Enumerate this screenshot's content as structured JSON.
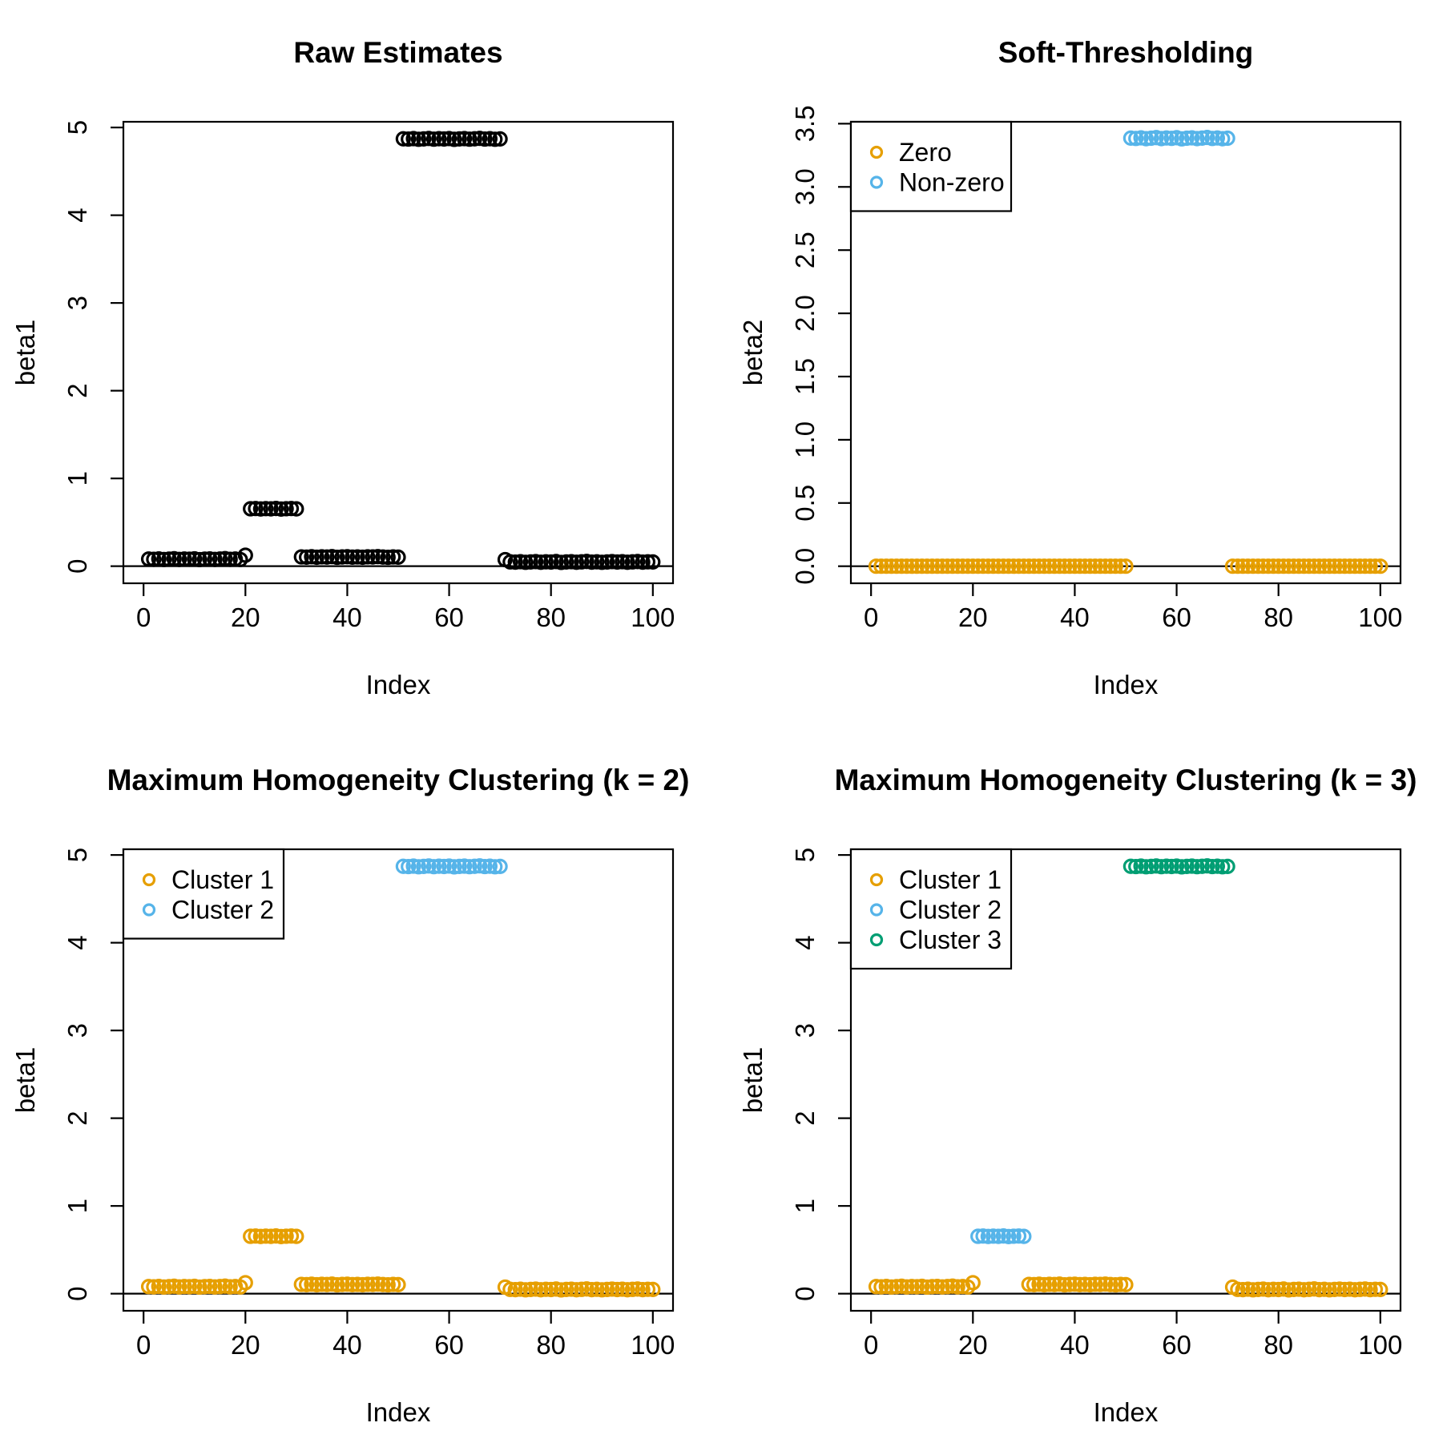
{
  "figure": {
    "background": "#ffffff",
    "point_marker": "open-circle",
    "colors": {
      "black": "#000000",
      "orange": "#E69F00",
      "sky_blue": "#56B4E9",
      "green": "#009E73"
    }
  },
  "chart_data": {
    "type": "scatter",
    "grid": "2x2",
    "x_is_index": true,
    "x": [
      1,
      2,
      3,
      4,
      5,
      6,
      7,
      8,
      9,
      10,
      11,
      12,
      13,
      14,
      15,
      16,
      17,
      18,
      19,
      20,
      21,
      22,
      23,
      24,
      25,
      26,
      27,
      28,
      29,
      30,
      31,
      32,
      33,
      34,
      35,
      36,
      37,
      38,
      39,
      40,
      41,
      42,
      43,
      44,
      45,
      46,
      47,
      48,
      49,
      50,
      51,
      52,
      53,
      54,
      55,
      56,
      57,
      58,
      59,
      60,
      61,
      62,
      63,
      64,
      65,
      66,
      67,
      68,
      69,
      70,
      71,
      72,
      73,
      74,
      75,
      76,
      77,
      78,
      79,
      80,
      81,
      82,
      83,
      84,
      85,
      86,
      87,
      88,
      89,
      90,
      91,
      92,
      93,
      94,
      95,
      96,
      97,
      98,
      99,
      100
    ],
    "beta1": [
      0.081,
      0.078,
      0.083,
      0.076,
      0.08,
      0.085,
      0.077,
      0.082,
      0.079,
      0.084,
      0.075,
      0.08,
      0.083,
      0.077,
      0.081,
      0.086,
      0.078,
      0.082,
      0.076,
      0.125,
      0.654,
      0.657,
      0.652,
      0.656,
      0.653,
      0.658,
      0.651,
      0.655,
      0.657,
      0.653,
      0.106,
      0.103,
      0.108,
      0.102,
      0.107,
      0.104,
      0.109,
      0.101,
      0.105,
      0.108,
      0.103,
      0.106,
      0.102,
      0.107,
      0.105,
      0.109,
      0.104,
      0.101,
      0.106,
      0.103,
      4.871,
      4.868,
      4.873,
      4.866,
      4.87,
      4.875,
      4.867,
      4.872,
      4.869,
      4.874,
      4.865,
      4.87,
      4.873,
      4.867,
      4.871,
      4.876,
      4.868,
      4.872,
      4.866,
      4.87,
      0.075,
      0.049,
      0.046,
      0.051,
      0.044,
      0.048,
      0.052,
      0.045,
      0.05,
      0.047,
      0.053,
      0.043,
      0.048,
      0.051,
      0.045,
      0.049,
      0.054,
      0.046,
      0.05,
      0.044,
      0.048,
      0.052,
      0.047,
      0.051,
      0.045,
      0.049,
      0.053,
      0.046,
      0.05,
      0.048
    ],
    "beta2": [
      0,
      0,
      0,
      0,
      0,
      0,
      0,
      0,
      0,
      0,
      0,
      0,
      0,
      0,
      0,
      0,
      0,
      0,
      0,
      0,
      0,
      0,
      0,
      0,
      0,
      0,
      0,
      0,
      0,
      0,
      0,
      0,
      0,
      0,
      0,
      0,
      0,
      0,
      0,
      0,
      0,
      0,
      0,
      0,
      0,
      0,
      0,
      0,
      0,
      0,
      3.386,
      3.383,
      3.388,
      3.381,
      3.385,
      3.39,
      3.382,
      3.387,
      3.384,
      3.389,
      3.38,
      3.385,
      3.388,
      3.382,
      3.386,
      3.391,
      3.383,
      3.387,
      3.381,
      3.385,
      0,
      0,
      0,
      0,
      0,
      0,
      0,
      0,
      0,
      0,
      0,
      0,
      0,
      0,
      0,
      0,
      0,
      0,
      0,
      0,
      0,
      0,
      0,
      0,
      0,
      0,
      0,
      0,
      0,
      0
    ],
    "panels": [
      {
        "title": "Raw Estimates",
        "xlabel": "Index",
        "ylabel": "beta1",
        "y_key": "beta1",
        "xlim": [
          -3.96,
          103.96
        ],
        "ylim": [
          -0.195,
          5.065
        ],
        "xticks": [
          0,
          20,
          40,
          60,
          80,
          100
        ],
        "xtick_labels": [
          "0",
          "20",
          "40",
          "60",
          "80",
          "100"
        ],
        "yticks": [
          0,
          1,
          2,
          3,
          4,
          5
        ],
        "ytick_labels": [
          "0",
          "1",
          "2",
          "3",
          "4",
          "5"
        ],
        "hline": 0,
        "legend": null,
        "groups": [
          {
            "label": null,
            "color": "#000000",
            "ranges": [
              [
                1,
                100
              ]
            ]
          }
        ]
      },
      {
        "title": "Soft-Thresholding",
        "xlabel": "Index",
        "ylabel": "beta2",
        "y_key": "beta2",
        "xlim": [
          -3.96,
          103.96
        ],
        "ylim": [
          -0.135,
          3.515
        ],
        "xticks": [
          0,
          20,
          40,
          60,
          80,
          100
        ],
        "xtick_labels": [
          "0",
          "20",
          "40",
          "60",
          "80",
          "100"
        ],
        "yticks": [
          0,
          0.5,
          1,
          1.5,
          2,
          2.5,
          3,
          3.5
        ],
        "ytick_labels": [
          "0.0",
          "0.5",
          "1.0",
          "1.5",
          "2.0",
          "2.5",
          "3.0",
          "3.5"
        ],
        "hline": 0,
        "legend": {
          "position": "topleft",
          "items": [
            "Zero",
            "Non-zero"
          ]
        },
        "groups": [
          {
            "label": "Zero",
            "color": "#E69F00",
            "ranges": [
              [
                1,
                50
              ],
              [
                71,
                100
              ]
            ]
          },
          {
            "label": "Non-zero",
            "color": "#56B4E9",
            "ranges": [
              [
                51,
                70
              ]
            ]
          }
        ]
      },
      {
        "title": "Maximum Homogeneity Clustering (k = 2)",
        "xlabel": "Index",
        "ylabel": "beta1",
        "y_key": "beta1",
        "xlim": [
          -3.96,
          103.96
        ],
        "ylim": [
          -0.195,
          5.065
        ],
        "xticks": [
          0,
          20,
          40,
          60,
          80,
          100
        ],
        "xtick_labels": [
          "0",
          "20",
          "40",
          "60",
          "80",
          "100"
        ],
        "yticks": [
          0,
          1,
          2,
          3,
          4,
          5
        ],
        "ytick_labels": [
          "0",
          "1",
          "2",
          "3",
          "4",
          "5"
        ],
        "hline": 0,
        "legend": {
          "position": "topleft",
          "items": [
            "Cluster 1",
            "Cluster 2"
          ]
        },
        "groups": [
          {
            "label": "Cluster 1",
            "color": "#E69F00",
            "ranges": [
              [
                1,
                50
              ],
              [
                71,
                100
              ]
            ]
          },
          {
            "label": "Cluster 2",
            "color": "#56B4E9",
            "ranges": [
              [
                51,
                70
              ]
            ]
          }
        ]
      },
      {
        "title": "Maximum Homogeneity Clustering (k = 3)",
        "xlabel": "Index",
        "ylabel": "beta1",
        "y_key": "beta1",
        "xlim": [
          -3.96,
          103.96
        ],
        "ylim": [
          -0.195,
          5.065
        ],
        "xticks": [
          0,
          20,
          40,
          60,
          80,
          100
        ],
        "xtick_labels": [
          "0",
          "20",
          "40",
          "60",
          "80",
          "100"
        ],
        "yticks": [
          0,
          1,
          2,
          3,
          4,
          5
        ],
        "ytick_labels": [
          "0",
          "1",
          "2",
          "3",
          "4",
          "5"
        ],
        "hline": 0,
        "legend": {
          "position": "topleft",
          "items": [
            "Cluster 1",
            "Cluster 2",
            "Cluster 3"
          ]
        },
        "groups": [
          {
            "label": "Cluster 1",
            "color": "#E69F00",
            "ranges": [
              [
                1,
                20
              ],
              [
                31,
                50
              ],
              [
                71,
                100
              ]
            ]
          },
          {
            "label": "Cluster 2",
            "color": "#56B4E9",
            "ranges": [
              [
                21,
                30
              ]
            ]
          },
          {
            "label": "Cluster 3",
            "color": "#009E73",
            "ranges": [
              [
                51,
                70
              ]
            ]
          }
        ]
      }
    ]
  }
}
